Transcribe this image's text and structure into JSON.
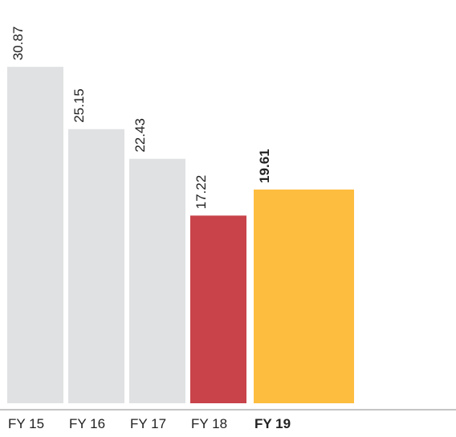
{
  "chart_data": {
    "type": "bar",
    "categories": [
      "FY 15",
      "FY 16",
      "FY 17",
      "FY 18",
      "FY 19"
    ],
    "values": [
      30.87,
      25.15,
      22.43,
      17.22,
      19.61
    ],
    "colors": [
      "#e0e1e3",
      "#e0e1e3",
      "#e0e1e3",
      "#c8434a",
      "#fdbd3e"
    ],
    "ylim": [
      0,
      37
    ]
  }
}
